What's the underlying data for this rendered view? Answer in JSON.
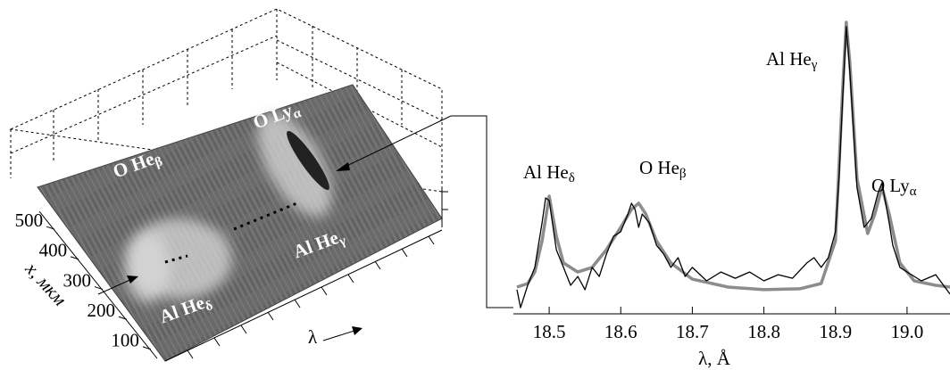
{
  "chart_data": [
    {
      "type": "surface",
      "ylabel": "x, мкм",
      "xlabel": "λ",
      "ylim": [
        70,
        560
      ],
      "yticks": [
        100,
        200,
        300,
        400,
        500
      ],
      "annotations": [
        {
          "text": "O Ly",
          "sub": "α"
        },
        {
          "text": "O He",
          "sub": "β"
        },
        {
          "text": "Al He",
          "sub": "γ"
        },
        {
          "text": "Al He",
          "sub": "δ"
        }
      ]
    },
    {
      "type": "line",
      "xlabel": "λ, Å",
      "xlim": [
        18.45,
        19.06
      ],
      "xticks": [
        18.5,
        18.6,
        18.7,
        18.8,
        18.9,
        {
          "value": 19.0,
          "label": "19.0"
        }
      ],
      "ylim": [
        0,
        100
      ],
      "annotations": [
        {
          "text": "Al He",
          "sub": "δ"
        },
        {
          "text": "O He",
          "sub": "β"
        },
        {
          "text": "Al He",
          "sub": "γ"
        },
        {
          "text": "O Ly",
          "sub": "α"
        }
      ],
      "series": [
        {
          "color": "#000000",
          "x": [
            18.455,
            18.46,
            18.47,
            18.48,
            18.49,
            18.495,
            18.5,
            18.51,
            18.52,
            18.53,
            18.54,
            18.55,
            18.56,
            18.57,
            18.58,
            18.59,
            18.6,
            18.61,
            18.615,
            18.62,
            18.625,
            18.63,
            18.64,
            18.65,
            18.66,
            18.67,
            18.68,
            18.69,
            18.7,
            18.72,
            18.74,
            18.76,
            18.78,
            18.8,
            18.82,
            18.84,
            18.86,
            18.87,
            18.88,
            18.89,
            18.9,
            18.905,
            18.91,
            18.915,
            18.92,
            18.93,
            18.94,
            18.95,
            18.96,
            18.965,
            18.975,
            18.98,
            18.99,
            19.0,
            19.02,
            19.04,
            19.06
          ],
          "values": [
            8.2,
            2.1,
            9.7,
            15.8,
            30.9,
            39.4,
            38.5,
            21.8,
            15.8,
            9.7,
            12.7,
            8.2,
            15.8,
            12.7,
            20.3,
            26.4,
            27.9,
            33.9,
            37.6,
            35.5,
            29.4,
            33.9,
            30.9,
            23.3,
            20.3,
            15.8,
            19.1,
            12.7,
            15.8,
            11.2,
            14.2,
            12.1,
            14.2,
            11.2,
            13.3,
            12.1,
            17.3,
            19.1,
            15.8,
            19.1,
            27.9,
            46.1,
            73.3,
            97.6,
            82.4,
            43,
            29.4,
            32.4,
            41.5,
            44.5,
            30.9,
            23.3,
            15.8,
            14.2,
            11.2,
            13.3,
            6.7
          ]
        },
        {
          "color": "#8c8c8c",
          "x": [
            18.455,
            18.47,
            18.48,
            18.49,
            18.5,
            18.51,
            18.52,
            18.54,
            18.56,
            18.58,
            18.6,
            18.615,
            18.625,
            18.635,
            18.65,
            18.67,
            18.7,
            18.75,
            18.8,
            18.85,
            18.88,
            18.9,
            18.91,
            18.915,
            18.92,
            18.93,
            18.945,
            18.955,
            18.965,
            18.975,
            18.99,
            19.01,
            19.04,
            19.06
          ],
          "values": [
            9.1,
            10.3,
            14.2,
            24.8,
            40,
            26.4,
            17.3,
            14.2,
            15.8,
            21.8,
            29.4,
            35.5,
            37.6,
            33.9,
            24.8,
            17.3,
            11.8,
            9.1,
            8.2,
            8.5,
            10.3,
            24.8,
            76.4,
            99.1,
            85.5,
            46.1,
            27.3,
            33.9,
            43,
            33.9,
            17.3,
            11.2,
            9.7,
            9.1
          ]
        }
      ]
    }
  ]
}
